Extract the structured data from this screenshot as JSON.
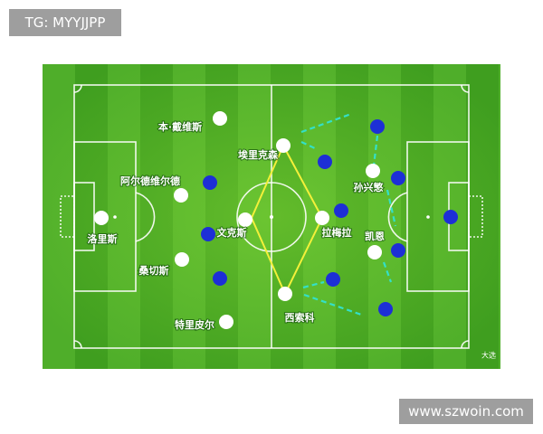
{
  "watermark": "TG: MYYJJPP",
  "footer": "www.szwoin.com",
  "logo": "大选",
  "players": [
    {
      "label": "本·戴维斯"
    },
    {
      "label": "埃里克森"
    },
    {
      "label": "阿尔德维尔德"
    },
    {
      "label": "洛里斯"
    },
    {
      "label": "文克斯"
    },
    {
      "label": "拉梅拉"
    },
    {
      "label": "孙兴慜"
    },
    {
      "label": "桑切斯"
    },
    {
      "label": "西索科"
    },
    {
      "label": "特里皮尔"
    },
    {
      "label": "凯恩"
    }
  ]
}
